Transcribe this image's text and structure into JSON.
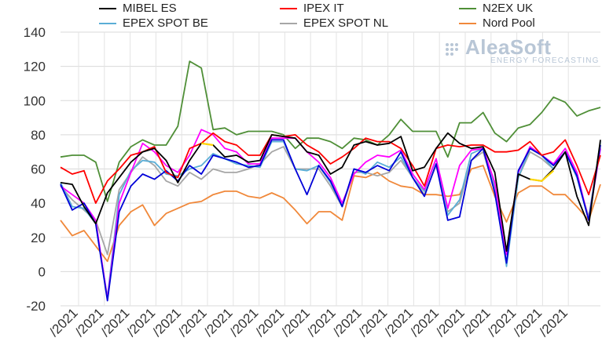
{
  "chart_data": {
    "type": "line",
    "title": "",
    "xlabel": "",
    "ylabel": "",
    "ylim": [
      -20,
      140
    ],
    "yticks": [
      -20,
      0,
      20,
      40,
      60,
      80,
      100,
      120,
      140
    ],
    "grid": true,
    "legend_position": "top",
    "x_tick_labels": [
      "/2021",
      "/2021",
      "/2021",
      "/2021",
      "/2021",
      "/2021",
      "/2021",
      "/2021",
      "/2021",
      "/2021",
      "/2021",
      "/2021",
      "/2021",
      "/2021",
      "/2021",
      "/2021",
      "/2021",
      "/2021",
      "/2021",
      "/2021"
    ],
    "series": [
      {
        "name": "MIBEL ES",
        "color": "#000000",
        "values": [
          52,
          51,
          38,
          28,
          46,
          55,
          64,
          70,
          72,
          65,
          52,
          65,
          75,
          74,
          67,
          68,
          64,
          65,
          80,
          79,
          78,
          70,
          68,
          57,
          61,
          74,
          76,
          74,
          75,
          79,
          59,
          61,
          72,
          81,
          75,
          72,
          73,
          58,
          12,
          57,
          54,
          53,
          60,
          70,
          44,
          27,
          77
        ]
      },
      {
        "name": "IPEX IT",
        "color": "#ff0000",
        "values": [
          61,
          57,
          59,
          40,
          53,
          60,
          68,
          70,
          73,
          58,
          55,
          72,
          75,
          81,
          76,
          74,
          68,
          68,
          80,
          79,
          80,
          74,
          70,
          63,
          67,
          72,
          78,
          76,
          76,
          72,
          62,
          50,
          72,
          74,
          73,
          74,
          74,
          70,
          70,
          71,
          76,
          68,
          70,
          77,
          62,
          45,
          68
        ]
      },
      {
        "name": "N2EX UK",
        "color": "#4f8f37",
        "values": [
          67,
          68,
          68,
          64,
          41,
          64,
          73,
          77,
          74,
          74,
          85,
          123,
          119,
          83,
          84,
          80,
          82,
          82,
          82,
          80,
          72,
          78,
          78,
          76,
          72,
          78,
          77,
          74,
          80,
          89,
          82,
          82,
          82,
          67,
          87,
          87,
          93,
          81,
          76,
          84,
          86,
          93,
          102,
          99,
          91,
          94,
          96
        ]
      },
      {
        "name": "EPEX SPOT BE",
        "color": "#5aaed6",
        "values": [
          52,
          38,
          37,
          28,
          -15,
          45,
          59,
          65,
          64,
          57,
          56,
          60,
          62,
          69,
          66,
          63,
          62,
          61,
          76,
          76,
          60,
          59,
          62,
          52,
          38,
          60,
          57,
          64,
          61,
          67,
          55,
          47,
          66,
          33,
          42,
          69,
          72,
          50,
          3,
          55,
          72,
          68,
          60,
          70,
          55,
          30,
          76
        ]
      },
      {
        "name": "EPEX SPOT NL",
        "color": "#a6a6a6",
        "values": [
          50,
          42,
          36,
          30,
          10,
          48,
          58,
          67,
          62,
          53,
          50,
          58,
          54,
          60,
          58,
          58,
          60,
          63,
          70,
          73,
          60,
          60,
          60,
          50,
          38,
          58,
          58,
          56,
          58,
          65,
          55,
          45,
          62,
          35,
          40,
          65,
          70,
          48,
          5,
          55,
          70,
          66,
          60,
          70,
          55,
          32,
          75
        ]
      },
      {
        "name": "Nord Pool",
        "color": "#f0883a",
        "values": [
          30,
          21,
          24,
          15,
          6,
          27,
          35,
          39,
          27,
          34,
          37,
          40,
          41,
          45,
          47,
          47,
          44,
          43,
          46,
          43,
          36,
          28,
          35,
          35,
          30,
          56,
          55,
          58,
          53,
          50,
          49,
          45,
          45,
          44,
          45,
          60,
          62,
          44,
          29,
          46,
          50,
          50,
          45,
          45,
          38,
          30,
          51
        ]
      },
      {
        "name": "",
        "color": "#ff00ff",
        "values": [
          50,
          45,
          40,
          30,
          -16,
          40,
          58,
          75,
          70,
          62,
          58,
          68,
          83,
          80,
          72,
          70,
          63,
          63,
          78,
          78,
          78,
          70,
          64,
          55,
          40,
          57,
          64,
          68,
          67,
          71,
          57,
          48,
          66,
          37,
          62,
          71,
          72,
          52,
          10,
          58,
          73,
          68,
          63,
          72,
          58,
          30,
          72
        ]
      },
      {
        "name": "",
        "color": "#0000d8",
        "values": [
          51,
          36,
          40,
          28,
          -17,
          35,
          50,
          57,
          54,
          59,
          53,
          62,
          57,
          68,
          66,
          64,
          61,
          62,
          77,
          77,
          60,
          45,
          62,
          53,
          38,
          60,
          58,
          62,
          59,
          70,
          55,
          44,
          63,
          30,
          32,
          65,
          72,
          46,
          5,
          59,
          72,
          68,
          62,
          70,
          56,
          30,
          74
        ]
      },
      {
        "name": "",
        "color": "#ffd700",
        "values": [
          null,
          null,
          null,
          null,
          null,
          null,
          null,
          null,
          null,
          null,
          null,
          null,
          75,
          74,
          null,
          null,
          null,
          null,
          null,
          null,
          null,
          null,
          null,
          null,
          null,
          null,
          null,
          null,
          null,
          null,
          null,
          null,
          null,
          null,
          null,
          null,
          null,
          null,
          null,
          null,
          54,
          53,
          59,
          null,
          null,
          null,
          null
        ]
      }
    ]
  },
  "watermark": {
    "brand": "AleaSoft",
    "tagline": "ENERGY FORECASTING"
  }
}
